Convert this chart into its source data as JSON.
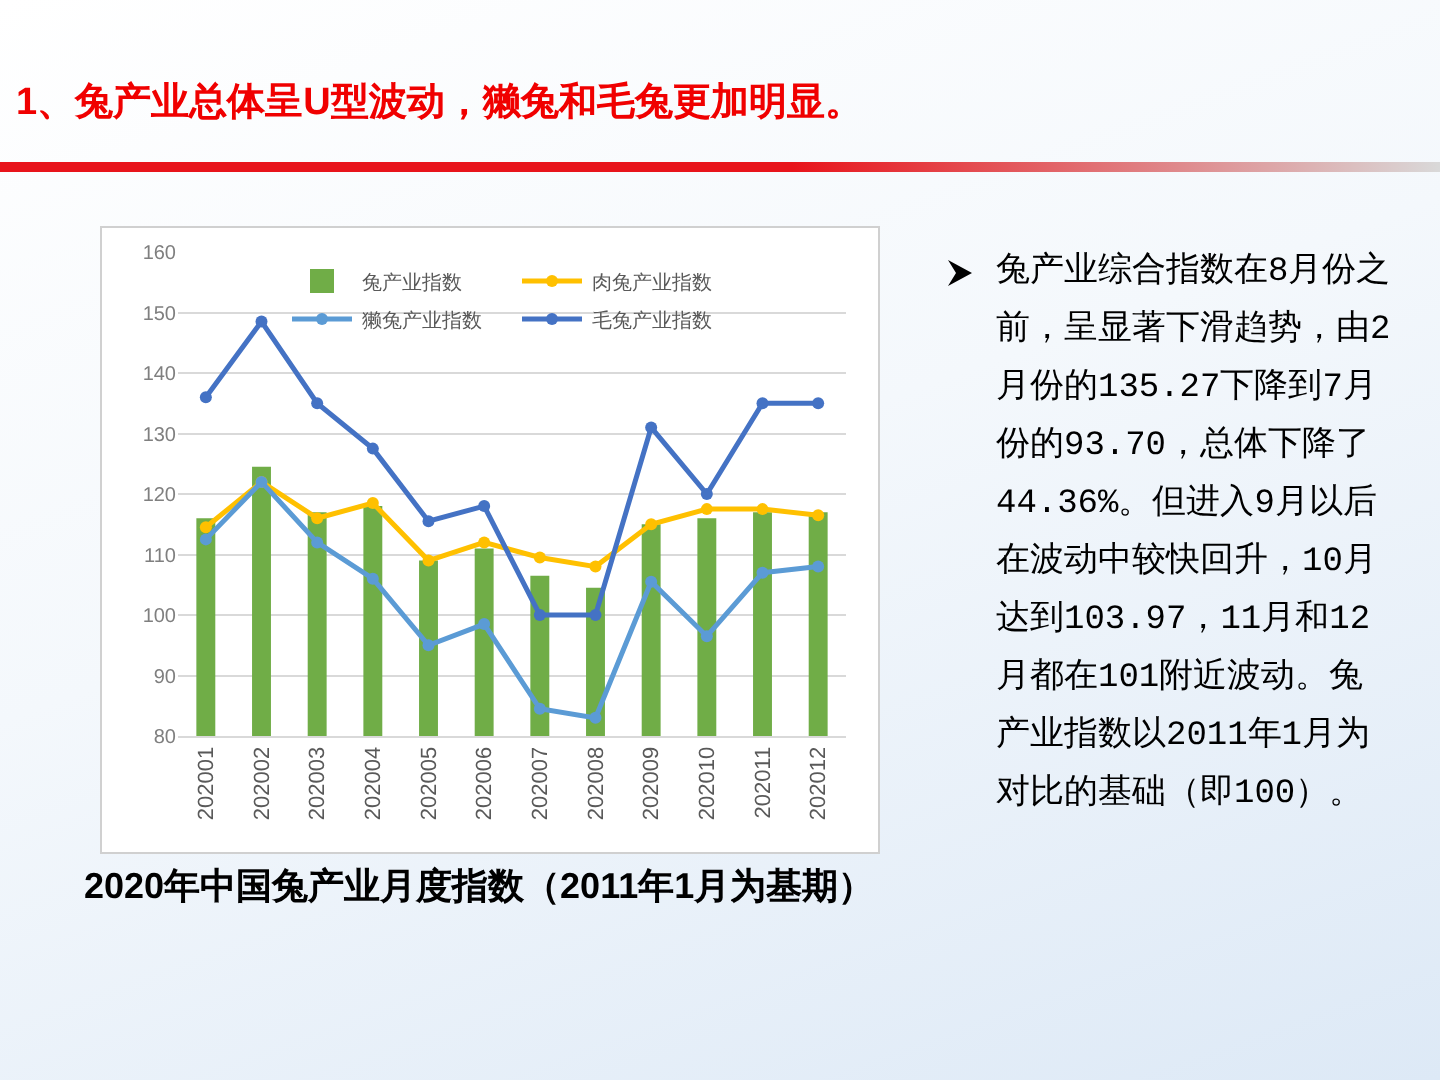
{
  "chart_data": {
    "type": "bar",
    "title": "2020年中国兔产业月度指数（2011年1月为基期）",
    "annotations": [
      "1、兔产业总体呈U型波动，獭兔和毛兔更加明显。",
      "兔产业综合指数在8月份之前，呈显著下滑趋势，由2月份的135.27下降到7月份的93.70，总体下降了44.36%。但进入9月以后在波动中较快回升，10月达到103.97，11月和12月都在101附近波动。兔产业指数以2011年1月为对比的基础（即100）。"
    ],
    "categories": [
      "202001",
      "202002",
      "202003",
      "202004",
      "202005",
      "202006",
      "202007",
      "202008",
      "202009",
      "202010",
      "202011",
      "202012"
    ],
    "series": [
      {
        "name": "兔产业指数",
        "color": "#70ad47",
        "values": [
          116,
          124.5,
          117,
          118,
          109,
          111,
          106.5,
          104.5,
          115,
          116,
          117,
          117
        ]
      },
      {
        "name": "肉兔产业指数",
        "type": "line",
        "color": "#ffc000",
        "values": [
          114.5,
          122,
          116,
          118.5,
          109,
          112,
          109.5,
          108,
          115,
          117.5,
          117.5,
          116.5
        ]
      },
      {
        "name": "獭兔产业指数",
        "type": "line",
        "color": "#5b9bd5",
        "values": [
          112.5,
          122,
          112,
          106,
          95,
          98.5,
          84.5,
          83,
          105.5,
          96.5,
          107,
          108
        ]
      },
      {
        "name": "毛兔产业指数",
        "type": "line",
        "color": "#4472c4",
        "values": [
          136,
          148.5,
          135,
          127.5,
          115.5,
          118,
          100,
          100,
          131,
          120,
          135,
          135
        ]
      }
    ],
    "ylim": [
      80,
      160
    ],
    "yticks": [
      80,
      90,
      100,
      110,
      120,
      130,
      140,
      150,
      160
    ],
    "grid": "y",
    "legend": "top",
    "marker": "circle",
    "line_style": "solid"
  }
}
